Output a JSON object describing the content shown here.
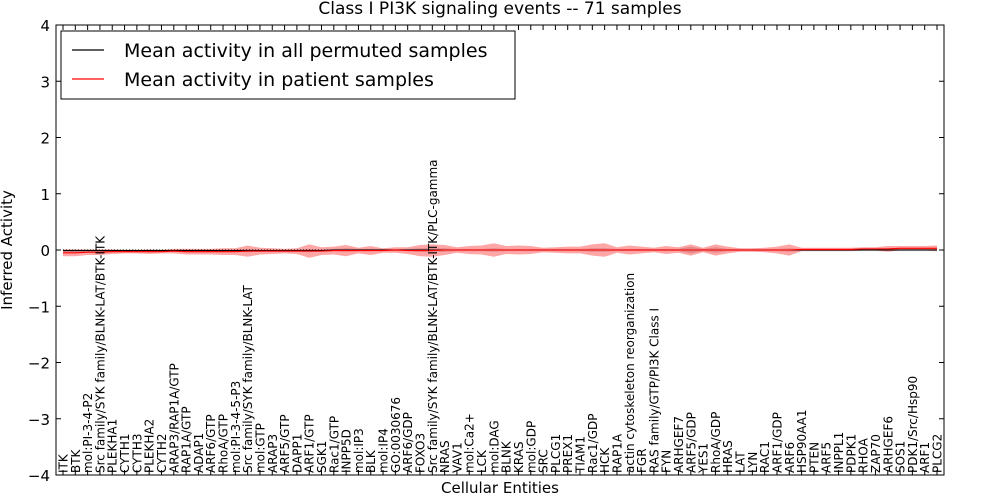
{
  "chart_data": {
    "type": "line",
    "title": "Class I PI3K signaling events -- 71 samples",
    "xlabel": "Cellular Entities",
    "ylabel": "Inferred Activity",
    "ylim": [
      -4,
      4
    ],
    "yticks": [
      -4,
      -3,
      -2,
      -1,
      0,
      1,
      2,
      3,
      4
    ],
    "ytick_labels": [
      "−4",
      "−3",
      "−2",
      "−1",
      "0",
      "1",
      "2",
      "3",
      "4"
    ],
    "legend_position": "top-left",
    "categories": [
      "ITK",
      "BTK",
      "mol:PI-3-4-P2",
      "Src family/SYK family/BLNK-LAT/BTK-ITK",
      "PLEKHA1",
      "CYTH1",
      "CYTH3",
      "PLEKHA2",
      "CYTH2",
      "ARAP3/RAP1A/GTP",
      "RAP1A/GTP",
      "ADAP1",
      "ARF6/GTP",
      "RhoA/GTP",
      "mol:PI-3-4-5-P3",
      "Src family/SYK family/BLNK-LAT",
      "mol:GTP",
      "ARAP3",
      "ARF5/GTP",
      "DAPP1",
      "ARF1/GTP",
      "SGK1",
      "Rac1/GTP",
      "INPP5D",
      "mol:IP3",
      "BLK",
      "mol:IP4",
      "GO:0030676",
      "ARF6/GDP",
      "FOXO3",
      "Src family/SYK family/BLNK-LAT/BTK-ITK/PLC-gamma",
      "NRAS",
      "VAV1",
      "mol:Ca2+",
      "LCK",
      "mol:DAG",
      "BLNK",
      "KRAS",
      "mol:GDP",
      "SRC",
      "PLCG1",
      "PREX1",
      "TIAM1",
      "Rac1/GDP",
      "HCK",
      "RAP1A",
      "actin cytoskeleton reorganization",
      "FGR",
      "RAS family/GTP/PI3K Class I",
      "FYN",
      "ARHGEF7",
      "ARF5/GDP",
      "YES1",
      "RhoA/GDP",
      "HRAS",
      "LAT",
      "LYN",
      "RAC1",
      "ARF1/GDP",
      "ARF6",
      "HSP90AA1",
      "PTEN",
      "ARF5",
      "INPPL1",
      "PDPK1",
      "RHOA",
      "ZAP70",
      "ARHGEF6",
      "SOS1",
      "PDK1/Src/Hsp90",
      "ARF1",
      "PLCG2"
    ],
    "series": [
      {
        "name": "Mean activity in all permuted samples",
        "color": "#000000",
        "values": [
          -0.01,
          -0.01,
          -0.01,
          -0.01,
          -0.01,
          -0.01,
          -0.01,
          -0.01,
          -0.01,
          -0.01,
          -0.01,
          -0.01,
          -0.01,
          -0.01,
          -0.01,
          -0.01,
          -0.01,
          -0.01,
          -0.01,
          -0.01,
          -0.01,
          -0.01,
          0.0,
          0.0,
          0.0,
          0.0,
          0.0,
          0.0,
          0.0,
          0.0,
          0.0,
          0.0,
          0.0,
          0.0,
          0.0,
          0.0,
          0.0,
          0.0,
          0.0,
          0.0,
          0.0,
          0.0,
          0.0,
          0.0,
          0.0,
          0.0,
          0.0,
          0.0,
          0.0,
          0.0,
          0.0,
          0.0,
          0.0,
          0.0,
          0.0,
          0.0,
          0.0,
          0.0,
          0.0,
          0.0,
          0.0,
          0.0,
          0.0,
          0.0,
          0.0,
          0.0,
          0.0,
          0.0,
          0.0,
          0.0,
          0.0,
          0.0
        ]
      },
      {
        "name": "Mean activity in patient samples",
        "color": "#ff0000",
        "values": [
          -0.05,
          -0.05,
          -0.04,
          -0.04,
          -0.03,
          -0.03,
          -0.03,
          -0.03,
          -0.03,
          -0.02,
          -0.03,
          -0.03,
          -0.03,
          -0.03,
          -0.03,
          -0.02,
          -0.02,
          -0.02,
          -0.02,
          -0.02,
          -0.02,
          -0.02,
          -0.01,
          -0.01,
          -0.01,
          -0.01,
          -0.01,
          0.0,
          -0.01,
          -0.01,
          -0.01,
          0.0,
          0.0,
          0.0,
          0.0,
          0.0,
          0.0,
          0.0,
          0.0,
          0.0,
          0.0,
          0.0,
          0.0,
          0.0,
          0.0,
          0.0,
          0.0,
          0.0,
          0.0,
          0.0,
          0.0,
          0.0,
          0.0,
          0.0,
          0.0,
          0.0,
          0.0,
          0.0,
          0.0,
          0.0,
          0.01,
          0.01,
          0.01,
          0.01,
          0.01,
          0.02,
          0.02,
          0.02,
          0.03,
          0.03,
          0.03,
          0.03
        ]
      }
    ],
    "patient_band_halfwidth": [
      0.06,
      0.06,
      0.05,
      0.05,
      0.04,
      0.03,
      0.03,
      0.04,
      0.03,
      0.04,
      0.05,
      0.05,
      0.05,
      0.06,
      0.06,
      0.1,
      0.06,
      0.05,
      0.04,
      0.05,
      0.12,
      0.07,
      0.07,
      0.1,
      0.05,
      0.08,
      0.04,
      0.05,
      0.06,
      0.1,
      0.11,
      0.09,
      0.05,
      0.07,
      0.08,
      0.12,
      0.07,
      0.08,
      0.07,
      0.04,
      0.05,
      0.06,
      0.06,
      0.1,
      0.12,
      0.05,
      0.08,
      0.06,
      0.04,
      0.07,
      0.05,
      0.1,
      0.04,
      0.1,
      0.06,
      0.03,
      0.03,
      0.04,
      0.06,
      0.1,
      0.03,
      0.03,
      0.03,
      0.03,
      0.03,
      0.03,
      0.03,
      0.05,
      0.04,
      0.04,
      0.04,
      0.05
    ],
    "permuted_band_halfwidth": [
      0.02,
      0.02,
      0.02,
      0.02,
      0.02,
      0.02,
      0.02,
      0.02,
      0.02,
      0.02,
      0.02,
      0.02,
      0.02,
      0.02,
      0.02,
      0.03,
      0.02,
      0.02,
      0.02,
      0.02,
      0.03,
      0.02,
      0.02,
      0.03,
      0.02,
      0.02,
      0.02,
      0.02,
      0.02,
      0.03,
      0.03,
      0.03,
      0.02,
      0.02,
      0.02,
      0.03,
      0.02,
      0.02,
      0.02,
      0.02,
      0.02,
      0.02,
      0.02,
      0.03,
      0.03,
      0.02,
      0.02,
      0.02,
      0.02,
      0.02,
      0.02,
      0.06,
      0.02,
      0.05,
      0.02,
      0.02,
      0.02,
      0.02,
      0.02,
      0.03,
      0.02,
      0.02,
      0.02,
      0.02,
      0.02,
      0.02,
      0.02,
      0.02,
      0.02,
      0.02,
      0.02,
      0.02
    ]
  }
}
